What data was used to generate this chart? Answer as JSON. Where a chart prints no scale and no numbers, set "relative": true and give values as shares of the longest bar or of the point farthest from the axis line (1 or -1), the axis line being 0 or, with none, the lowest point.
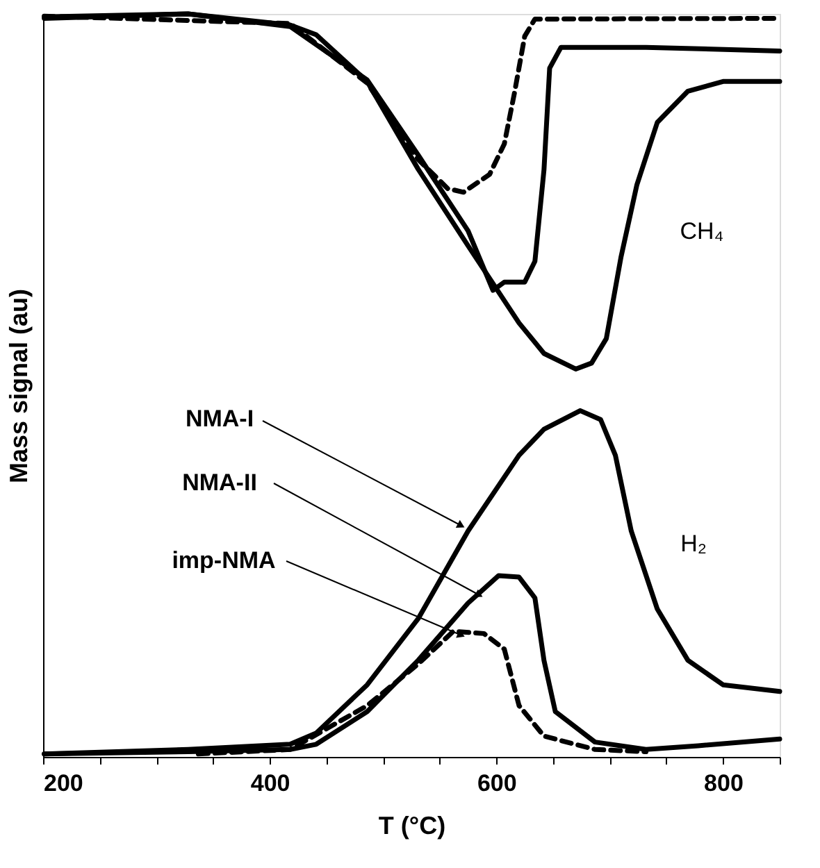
{
  "chart_data": {
    "type": "line",
    "relative": true,
    "xlabel": "T (°C)",
    "ylabel": "Mass signal (au)",
    "xlim": [
      200,
      850
    ],
    "xticks": [
      200,
      {
        "value": 250,
        "label": null
      },
      {
        "value": 300,
        "label": null
      },
      {
        "value": 350,
        "label": null
      },
      400,
      {
        "value": 450,
        "label": null
      },
      {
        "value": 500,
        "label": null
      },
      {
        "value": 550,
        "label": null
      },
      600,
      {
        "value": 650,
        "label": null
      },
      {
        "value": 700,
        "label": null
      },
      {
        "value": 750,
        "label": null
      },
      800,
      {
        "value": 850,
        "label": null
      }
    ],
    "grid": false,
    "annotations": [
      "CH₄",
      "H₂",
      "NMA-I",
      "NMA-II",
      "imp-NMA"
    ],
    "series": [
      {
        "color": "#000000",
        "line_style": "solid",
        "x": [
          201,
          328,
          418,
          441,
          486,
          531,
          575,
          620,
          642,
          670,
          684,
          697,
          710,
          724,
          742,
          769,
          800,
          850
        ],
        "values": [
          0.996,
          1.0,
          0.985,
          0.972,
          0.909,
          0.791,
          0.688,
          0.584,
          0.543,
          0.522,
          0.53,
          0.563,
          0.673,
          0.77,
          0.854,
          0.896,
          0.909,
          0.909
        ]
      },
      {
        "color": "#000000",
        "line_style": "solid",
        "x": [
          201,
          328,
          418,
          486,
          531,
          575,
          597,
          607,
          625,
          634,
          642,
          647,
          657,
          732,
          850
        ],
        "values": [
          0.994,
          1.0,
          0.983,
          0.911,
          0.81,
          0.708,
          0.628,
          0.639,
          0.639,
          0.667,
          0.79,
          0.927,
          0.955,
          0.955,
          0.95
        ]
      },
      {
        "color": "#000000",
        "line_style": "dashed",
        "x": [
          201,
          418,
          486,
          531,
          557,
          571,
          594,
          607,
          616,
          625,
          634,
          850
        ],
        "values": [
          0.997,
          0.987,
          0.907,
          0.804,
          0.765,
          0.76,
          0.784,
          0.825,
          0.894,
          0.97,
          0.993,
          0.994
        ]
      },
      {
        "color": "#000000",
        "line_style": "solid",
        "x": [
          201,
          328,
          418,
          441,
          486,
          531,
          575,
          620,
          642,
          674,
          692,
          705,
          719,
          742,
          769,
          800,
          850
        ],
        "values": [
          0.004,
          0.01,
          0.017,
          0.032,
          0.097,
          0.186,
          0.304,
          0.406,
          0.441,
          0.466,
          0.454,
          0.406,
          0.304,
          0.199,
          0.13,
          0.097,
          0.088
        ]
      },
      {
        "color": "#000000",
        "line_style": "solid",
        "x": [
          201,
          328,
          418,
          441,
          486,
          531,
          575,
          602,
          620,
          634,
          642,
          652,
          687,
          732,
          778,
          850
        ],
        "values": [
          0.004,
          0.007,
          0.01,
          0.017,
          0.061,
          0.13,
          0.207,
          0.244,
          0.242,
          0.214,
          0.13,
          0.061,
          0.02,
          0.01,
          0.015,
          0.024
        ]
      },
      {
        "color": "#000000",
        "line_style": "dashed",
        "x": [
          337,
          418,
          486,
          531,
          562,
          589,
          607,
          620,
          642,
          687,
          732
        ],
        "values": [
          0.004,
          0.01,
          0.069,
          0.125,
          0.169,
          0.166,
          0.145,
          0.069,
          0.028,
          0.01,
          0.007
        ]
      }
    ]
  }
}
